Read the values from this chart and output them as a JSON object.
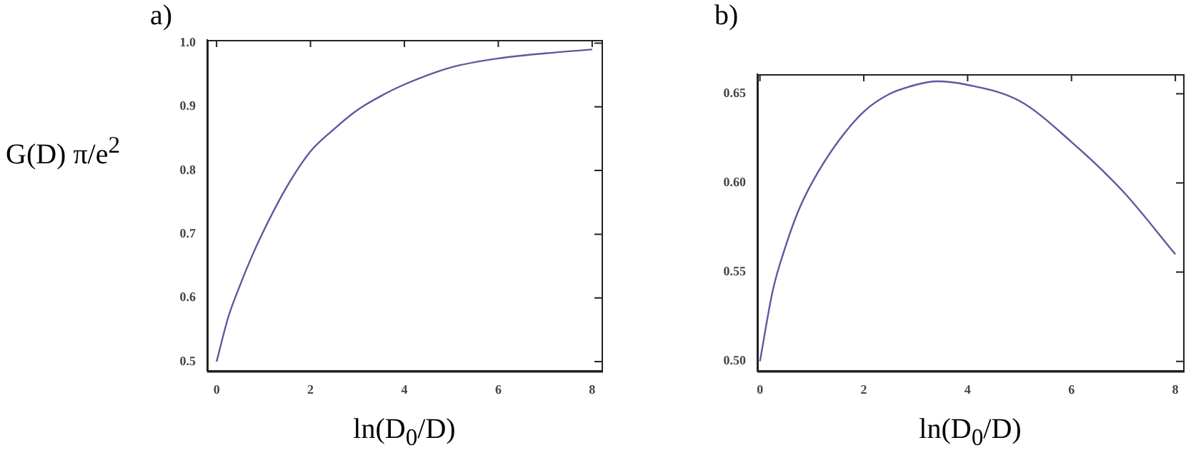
{
  "chart_data": [
    {
      "type": "line",
      "title": "a)",
      "xlabel": "ln(D$_{0}$/D)",
      "ylabel": "G(D) π/e$^{2}$",
      "x": [
        0,
        0.25,
        0.5,
        0.75,
        1,
        1.5,
        2,
        2.5,
        3,
        3.5,
        4,
        5,
        6,
        7,
        8
      ],
      "series": [
        {
          "color": "#5a5aa0",
          "values": [
            0.5,
            0.57,
            0.62,
            0.665,
            0.705,
            0.775,
            0.83,
            0.865,
            0.895,
            0.917,
            0.935,
            0.962,
            0.976,
            0.984,
            0.99
          ]
        }
      ],
      "xlim": [
        -0.2,
        8.2
      ],
      "ylim": [
        0.485,
        1.005
      ],
      "xticks": [
        0,
        2,
        4,
        6,
        8
      ],
      "yticks": [
        {
          "value": 0.5,
          "label": "0.5"
        },
        0.6,
        0.7,
        0.8,
        0.9,
        {
          "value": 1,
          "label": "1.0"
        }
      ],
      "grid": false,
      "legend": false,
      "marker": "none"
    },
    {
      "type": "line",
      "title": "b)",
      "xlabel": "ln(D$_{0}$/D)",
      "x": [
        0,
        0.25,
        0.5,
        0.75,
        1,
        1.5,
        2,
        2.5,
        3,
        3.4,
        4,
        5,
        6,
        7,
        8
      ],
      "series": [
        {
          "color": "#5a5aa0",
          "values": [
            0.5,
            0.54,
            0.565,
            0.585,
            0.6,
            0.623,
            0.64,
            0.65,
            0.655,
            0.657,
            0.655,
            0.646,
            0.623,
            0.595,
            0.56
          ]
        }
      ],
      "xlim": [
        -0.05,
        8.15
      ],
      "ylim": [
        0.4945,
        0.661
      ],
      "xticks": [
        0,
        2,
        4,
        6,
        8
      ],
      "yticks": [
        {
          "value": 0.5,
          "label": "0.50"
        },
        {
          "value": 0.55,
          "label": "0.55"
        },
        {
          "value": 0.6,
          "label": "0.60"
        },
        0.65
      ],
      "grid": false,
      "legend": false,
      "marker": "none"
    }
  ]
}
